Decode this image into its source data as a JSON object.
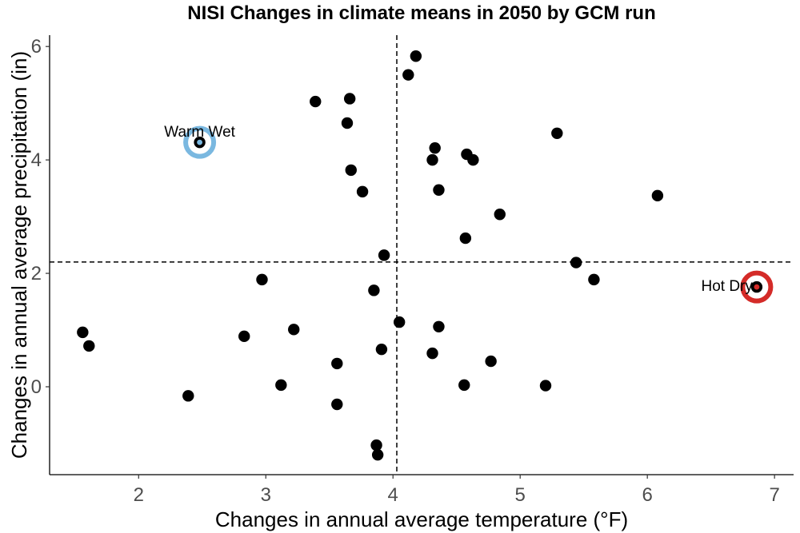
{
  "chart_data": {
    "type": "scatter",
    "title": "NISI Changes in climate means in 2050 by GCM run",
    "xlabel": "Changes in annual average temperature (°F)",
    "ylabel": "Changes in annual average precipitation (in)",
    "xlim": [
      1.3,
      7.15
    ],
    "ylim": [
      -1.55,
      6.2
    ],
    "xticks": [
      "2",
      "3",
      "4",
      "5",
      "6",
      "7"
    ],
    "yticks": [
      "0",
      "2",
      "4",
      "6"
    ],
    "grid": false,
    "reference_lines": {
      "x": 4.03,
      "y": 2.2
    },
    "point_color": "#000000",
    "points": [
      {
        "x": 1.56,
        "y": 0.96
      },
      {
        "x": 1.61,
        "y": 0.72
      },
      {
        "x": 2.39,
        "y": -0.16
      },
      {
        "x": 2.48,
        "y": 4.31
      },
      {
        "x": 2.83,
        "y": 0.89
      },
      {
        "x": 2.97,
        "y": 1.89
      },
      {
        "x": 3.12,
        "y": 0.03
      },
      {
        "x": 3.22,
        "y": 1.01
      },
      {
        "x": 3.39,
        "y": 5.03
      },
      {
        "x": 3.56,
        "y": 0.41
      },
      {
        "x": 3.56,
        "y": -0.31
      },
      {
        "x": 3.64,
        "y": 4.65
      },
      {
        "x": 3.66,
        "y": 5.08
      },
      {
        "x": 3.67,
        "y": 3.82
      },
      {
        "x": 3.76,
        "y": 3.44
      },
      {
        "x": 3.85,
        "y": 1.7
      },
      {
        "x": 3.87,
        "y": -1.03
      },
      {
        "x": 3.88,
        "y": -1.2
      },
      {
        "x": 3.91,
        "y": 0.66
      },
      {
        "x": 3.93,
        "y": 2.32
      },
      {
        "x": 4.05,
        "y": 1.14
      },
      {
        "x": 4.12,
        "y": 5.5
      },
      {
        "x": 4.18,
        "y": 5.83
      },
      {
        "x": 4.31,
        "y": 0.59
      },
      {
        "x": 4.31,
        "y": 4.0
      },
      {
        "x": 4.33,
        "y": 4.21
      },
      {
        "x": 4.36,
        "y": 1.06
      },
      {
        "x": 4.36,
        "y": 3.47
      },
      {
        "x": 4.56,
        "y": 0.03
      },
      {
        "x": 4.57,
        "y": 2.62
      },
      {
        "x": 4.58,
        "y": 4.1
      },
      {
        "x": 4.63,
        "y": 4.0
      },
      {
        "x": 4.77,
        "y": 0.45
      },
      {
        "x": 4.84,
        "y": 3.04
      },
      {
        "x": 5.2,
        "y": 0.02
      },
      {
        "x": 5.29,
        "y": 4.47
      },
      {
        "x": 5.44,
        "y": 2.19
      },
      {
        "x": 5.58,
        "y": 1.89
      },
      {
        "x": 6.08,
        "y": 3.37
      },
      {
        "x": 6.86,
        "y": 1.76
      }
    ],
    "highlights": [
      {
        "label": "Warm Wet",
        "x": 2.48,
        "y": 4.31,
        "ring_color": "#7ab8e0",
        "dot_color": "#7ab8e0",
        "label_position": "above"
      },
      {
        "label": "Hot Dry",
        "x": 6.86,
        "y": 1.76,
        "ring_color": "#d42b28",
        "dot_color": "#d42b28",
        "label_position": "left"
      }
    ]
  }
}
